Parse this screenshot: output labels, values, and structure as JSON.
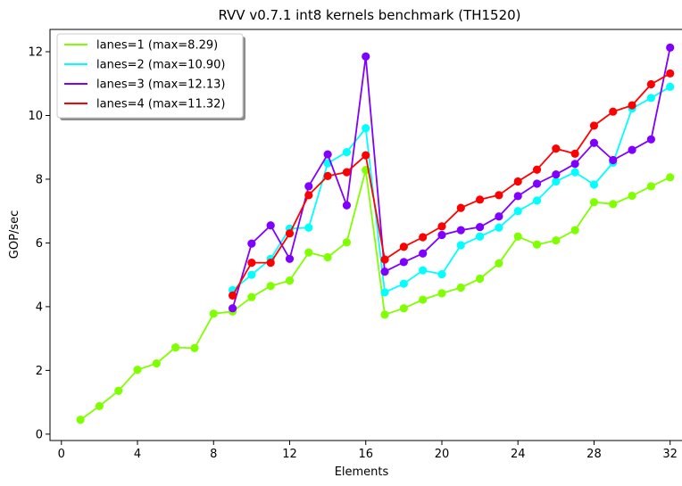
{
  "chart_data": {
    "type": "line",
    "title": "RVV v0.7.1 int8 kernels benchmark (TH1520)",
    "xlabel": "Elements",
    "ylabel": "GOP/sec",
    "xlim": [
      -0.6,
      33.0
    ],
    "ylim": [
      -0.2,
      12.7
    ],
    "xticks": [
      0,
      4,
      8,
      12,
      16,
      20,
      24,
      28,
      32
    ],
    "yticks": [
      0,
      2,
      4,
      6,
      8,
      10,
      12
    ],
    "grid": false,
    "legend_position": "top-left",
    "series": [
      {
        "name": "lanes=1 (max=8.29)",
        "color": "#80ff00",
        "x": [
          1,
          2,
          3,
          4,
          5,
          6,
          7,
          8,
          9,
          10,
          11,
          12,
          13,
          14,
          15,
          16,
          17,
          18,
          19,
          20,
          21,
          22,
          23,
          24,
          25,
          26,
          27,
          28,
          29,
          30,
          31,
          32
        ],
        "values": [
          0.45,
          0.88,
          1.36,
          2.02,
          2.22,
          2.72,
          2.7,
          3.78,
          3.85,
          4.3,
          4.65,
          4.82,
          5.7,
          5.55,
          6.02,
          8.29,
          3.75,
          3.95,
          4.22,
          4.42,
          4.6,
          4.88,
          5.36,
          6.2,
          5.95,
          6.08,
          6.4,
          7.28,
          7.22,
          7.48,
          7.78,
          8.06
        ]
      },
      {
        "name": "lanes=2 (max=10.90)",
        "color": "#00ffff",
        "x": [
          9,
          10,
          11,
          12,
          13,
          14,
          15,
          16,
          17,
          18,
          19,
          20,
          21,
          22,
          23,
          24,
          25,
          26,
          27,
          28,
          29,
          30,
          31,
          32
        ],
        "values": [
          4.52,
          5.0,
          5.5,
          6.45,
          6.48,
          8.5,
          8.85,
          9.6,
          4.45,
          4.72,
          5.14,
          5.02,
          5.93,
          6.2,
          6.48,
          7.0,
          7.33,
          7.93,
          8.22,
          7.83,
          8.52,
          10.22,
          10.55,
          10.9
        ]
      },
      {
        "name": "lanes=3 (max=12.13)",
        "color": "#7f00ff",
        "x": [
          9,
          10,
          11,
          12,
          13,
          14,
          15,
          16,
          17,
          18,
          19,
          20,
          21,
          22,
          23,
          24,
          25,
          26,
          27,
          28,
          29,
          30,
          31,
          32
        ],
        "values": [
          3.95,
          5.98,
          6.55,
          5.5,
          7.78,
          8.78,
          7.18,
          11.85,
          5.1,
          5.4,
          5.67,
          6.25,
          6.4,
          6.5,
          6.83,
          7.47,
          7.86,
          8.15,
          8.48,
          9.14,
          8.6,
          8.92,
          9.25,
          12.13
        ]
      },
      {
        "name": "lanes=4 (max=11.32)",
        "color": "#ff0000",
        "x": [
          9,
          10,
          11,
          12,
          13,
          14,
          15,
          16,
          17,
          18,
          19,
          20,
          21,
          22,
          23,
          24,
          25,
          26,
          27,
          28,
          29,
          30,
          31,
          32
        ],
        "values": [
          4.35,
          5.38,
          5.38,
          6.3,
          7.5,
          8.1,
          8.22,
          8.75,
          5.48,
          5.88,
          6.18,
          6.52,
          7.1,
          7.36,
          7.5,
          7.93,
          8.3,
          8.96,
          8.8,
          9.68,
          10.12,
          10.32,
          10.98,
          11.32
        ]
      }
    ]
  }
}
